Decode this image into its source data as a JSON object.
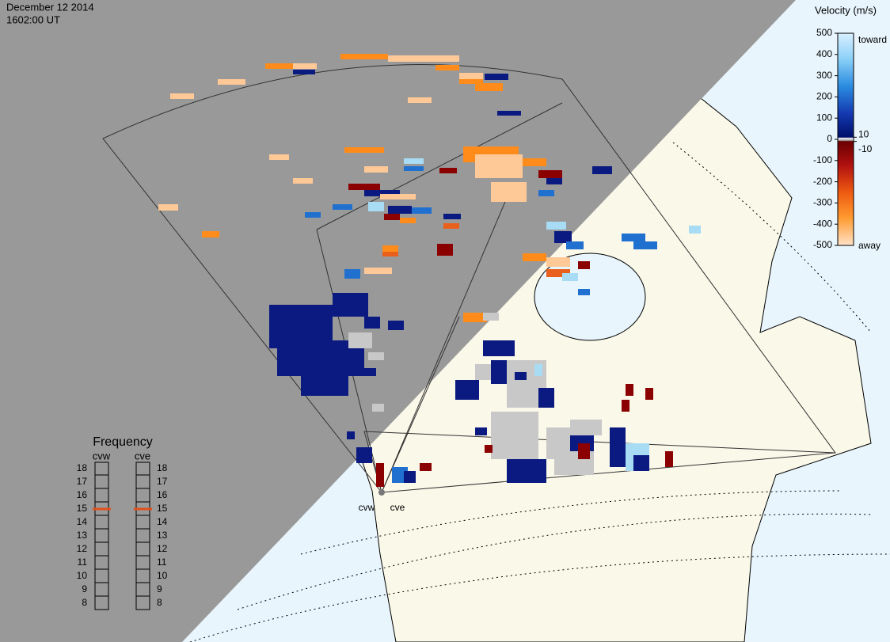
{
  "header": {
    "date": "December 12 2014",
    "time": "1602:00 UT"
  },
  "velocity_scale": {
    "title": "Velocity (m/s)",
    "lim": [
      -500,
      500
    ],
    "ticks": [
      500,
      400,
      300,
      200,
      100,
      0,
      -100,
      -200,
      -300,
      -400,
      -500
    ],
    "toward": "toward",
    "away": "away",
    "inner_ticks": [
      10,
      -10
    ]
  },
  "frequency": {
    "title": "Frequency",
    "lim": [
      8,
      18
    ],
    "ticks": [
      18,
      17,
      16,
      15,
      14,
      13,
      12,
      11,
      10,
      9,
      8
    ],
    "marker_color": "#e0501c",
    "radars": [
      {
        "name": "cvw",
        "value": 15
      },
      {
        "name": "cve",
        "value": 15
      }
    ]
  },
  "radar_labels": [
    "cvw",
    "cve"
  ]
}
